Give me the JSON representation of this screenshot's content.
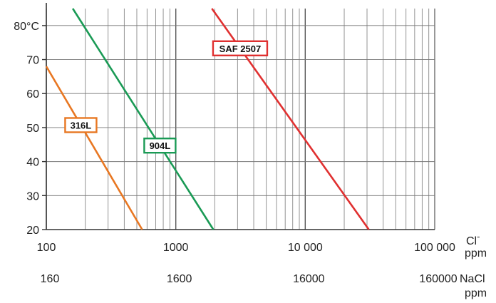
{
  "chart_data": {
    "type": "line",
    "x_scale": "log",
    "xlim": [
      100,
      100000
    ],
    "ylim": [
      20,
      85
    ],
    "y_ticks": [
      20,
      30,
      40,
      50,
      60,
      70,
      80
    ],
    "y_tick_labels": [
      "20",
      "30",
      "40",
      "50",
      "60",
      "70",
      "80°C"
    ],
    "x_ticks": [
      100,
      1000,
      10000,
      100000
    ],
    "x_tick_labels": [
      "100",
      "1000",
      "10 000",
      "100 000"
    ],
    "x_unit_label": "Cl",
    "x_unit_superscript": "-",
    "x_unit_sub": "ppm",
    "secondary_x_tick_labels": [
      "160",
      "1600",
      "16000",
      "160000"
    ],
    "secondary_x_unit_label": "NaCl",
    "secondary_x_unit_sub": "ppm",
    "grid": true,
    "series": [
      {
        "name": "316L",
        "color": "#e87722",
        "x": [
          100,
          550
        ],
        "y": [
          68,
          20
        ]
      },
      {
        "name": "904L",
        "color": "#1a9a55",
        "x": [
          160,
          1950
        ],
        "y": [
          85,
          20
        ]
      },
      {
        "name": "SAF 2507",
        "color": "#e03030",
        "x": [
          1900,
          31000
        ],
        "y": [
          85,
          20
        ]
      }
    ]
  }
}
